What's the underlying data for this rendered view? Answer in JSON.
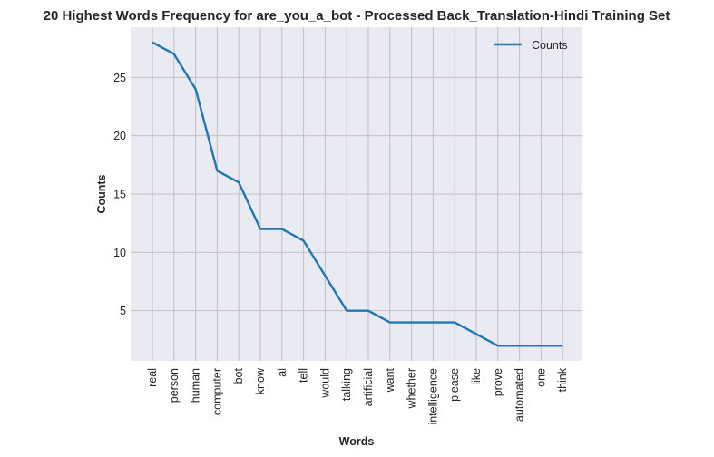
{
  "chart_data": {
    "type": "line",
    "title": "20 Highest Words Frequency for are_you_a_bot - Processed Back_Translation-Hindi Training Set",
    "xlabel": "Words",
    "ylabel": "Counts",
    "categories": [
      "real",
      "person",
      "human",
      "computer",
      "bot",
      "know",
      "ai",
      "tell",
      "would",
      "talking",
      "artificial",
      "want",
      "whether",
      "intelligence",
      "please",
      "like",
      "prove",
      "automated",
      "one",
      "think"
    ],
    "series": [
      {
        "name": "Counts",
        "values": [
          28,
          27,
          24,
          17,
          16,
          12,
          12,
          11,
          8,
          5,
          5,
          4,
          4,
          4,
          4,
          3,
          2,
          2,
          2,
          2
        ],
        "color": "#1f77b4"
      }
    ],
    "yticks": [
      5,
      10,
      15,
      20,
      25
    ],
    "ylim": [
      0.7,
      29.3
    ],
    "grid": true,
    "legend": "top-right",
    "plot_background": "#eaeaf2",
    "grid_color": "#c0c0c0"
  }
}
